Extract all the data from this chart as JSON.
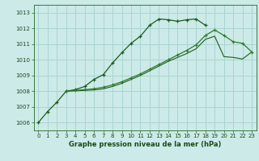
{
  "bg_color": "#cceae8",
  "grid_color": "#aad4d0",
  "line_color_dark": "#1a5c1a",
  "line_color_mid": "#2d7a2d",
  "title": "Graphe pression niveau de la mer (hPa)",
  "xlim": [
    -0.5,
    23.5
  ],
  "ylim": [
    1005.5,
    1013.5
  ],
  "yticks": [
    1006,
    1007,
    1008,
    1009,
    1010,
    1011,
    1012,
    1013
  ],
  "xticks": [
    0,
    1,
    2,
    3,
    4,
    5,
    6,
    7,
    8,
    9,
    10,
    11,
    12,
    13,
    14,
    15,
    16,
    17,
    18,
    19,
    20,
    21,
    22,
    23
  ],
  "s1_x": [
    0,
    1,
    2,
    3,
    4,
    5,
    6,
    7,
    8,
    9,
    10,
    11,
    12,
    13,
    14,
    15,
    16,
    17,
    18
  ],
  "s1_y": [
    1006.0,
    1006.7,
    1007.3,
    1008.0,
    1008.1,
    1008.3,
    1008.75,
    1009.05,
    1009.8,
    1010.45,
    1011.05,
    1011.5,
    1012.2,
    1012.6,
    1012.55,
    1012.45,
    1012.55,
    1012.6,
    1012.2
  ],
  "s2_x": [
    3,
    4,
    5,
    6,
    7,
    8,
    9,
    10,
    11,
    12,
    13,
    14,
    15,
    16,
    17,
    18,
    19,
    20,
    21,
    22,
    23
  ],
  "s2_y": [
    1008.0,
    1008.05,
    1008.1,
    1008.15,
    1008.25,
    1008.4,
    1008.6,
    1008.85,
    1009.1,
    1009.4,
    1009.7,
    1010.0,
    1010.3,
    1010.6,
    1010.95,
    1011.55,
    1011.9,
    1011.55,
    1011.15,
    1011.05,
    1010.5
  ],
  "s3_x": [
    3,
    4,
    5,
    6,
    7,
    8,
    9,
    10,
    11,
    12,
    13,
    14,
    15,
    16,
    17,
    18,
    19,
    20,
    21,
    22,
    23
  ],
  "s3_y": [
    1008.0,
    1008.02,
    1008.05,
    1008.08,
    1008.15,
    1008.3,
    1008.5,
    1008.75,
    1009.0,
    1009.3,
    1009.6,
    1009.9,
    1010.15,
    1010.4,
    1010.7,
    1011.3,
    1011.5,
    1010.2,
    1010.15,
    1010.05,
    1010.5
  ]
}
